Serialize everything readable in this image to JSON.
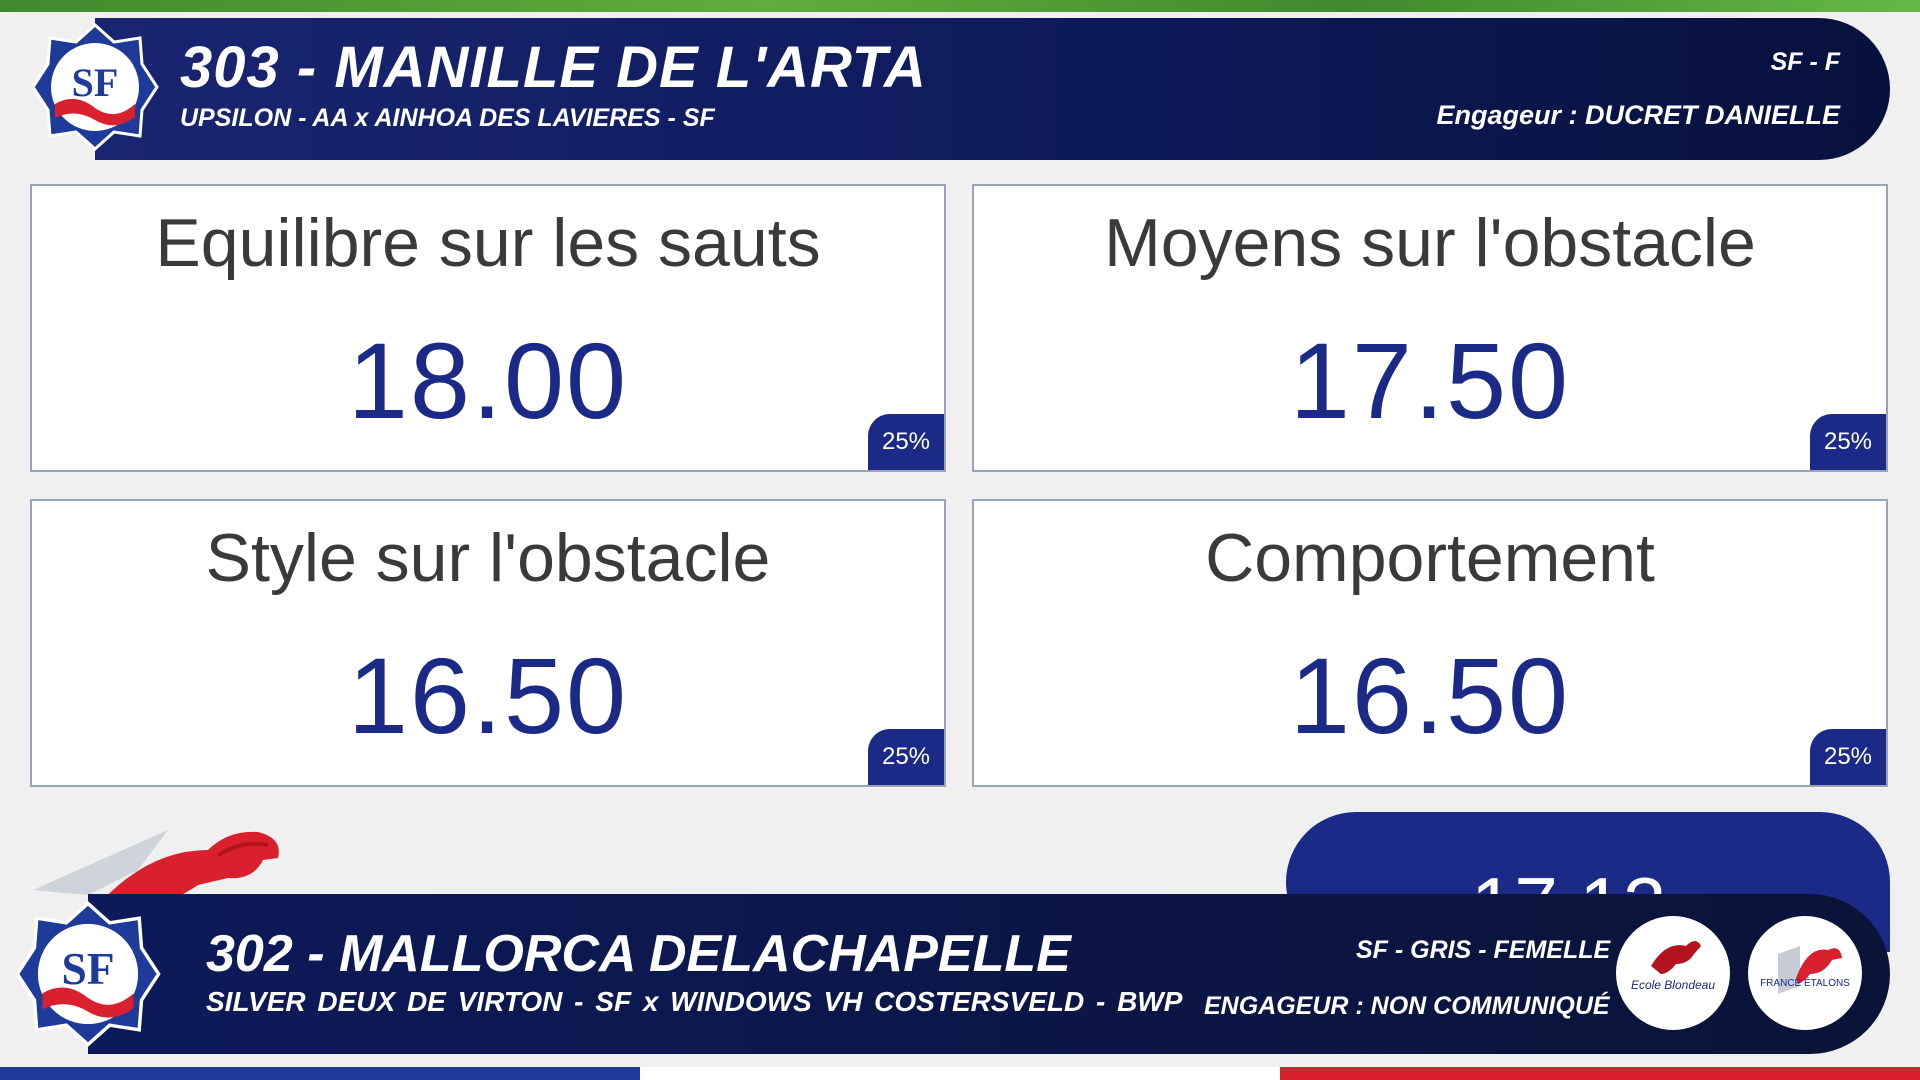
{
  "header": {
    "title": "303 - MANILLE DE L'ARTA",
    "pedigree": "UPSILON - AA x AINHOA DES LAVIERES - SF",
    "breed_sex": "SF - F",
    "engageur": "Engageur : DUCRET DANIELLE",
    "logo_text": "SF"
  },
  "scores": [
    {
      "label": "Equilibre sur les sauts",
      "score": "18.00",
      "weight": "25%"
    },
    {
      "label": "Moyens sur l'obstacle",
      "score": "17.50",
      "weight": "25%"
    },
    {
      "label": "Style sur l'obstacle",
      "score": "16.50",
      "weight": "25%"
    },
    {
      "label": "Comportement",
      "score": "16.50",
      "weight": "25%"
    }
  ],
  "total": {
    "value": "17.12"
  },
  "next_horse": {
    "title": "302 - MALLORCA DELACHAPELLE",
    "pedigree": "SILVER DEUX DE VIRTON - SF  x  WINDOWS VH COSTERSVELD - BWP",
    "breed_info": "SF - GRIS - FEMELLE",
    "engageur": "ENGAGEUR :  NON COMMUNIQUÉ",
    "logo_text": "SF",
    "sponsors": [
      {
        "name": "Ecole Blondeau"
      },
      {
        "name": "FRANCE ÉTALONS"
      }
    ]
  },
  "colors": {
    "navy": "#1a2a86",
    "banner": "#0d1a5a",
    "flag_blue": "#1f3b9a",
    "flag_white": "#ffffff",
    "flag_red": "#d8202f",
    "green": "#5fae3c"
  }
}
